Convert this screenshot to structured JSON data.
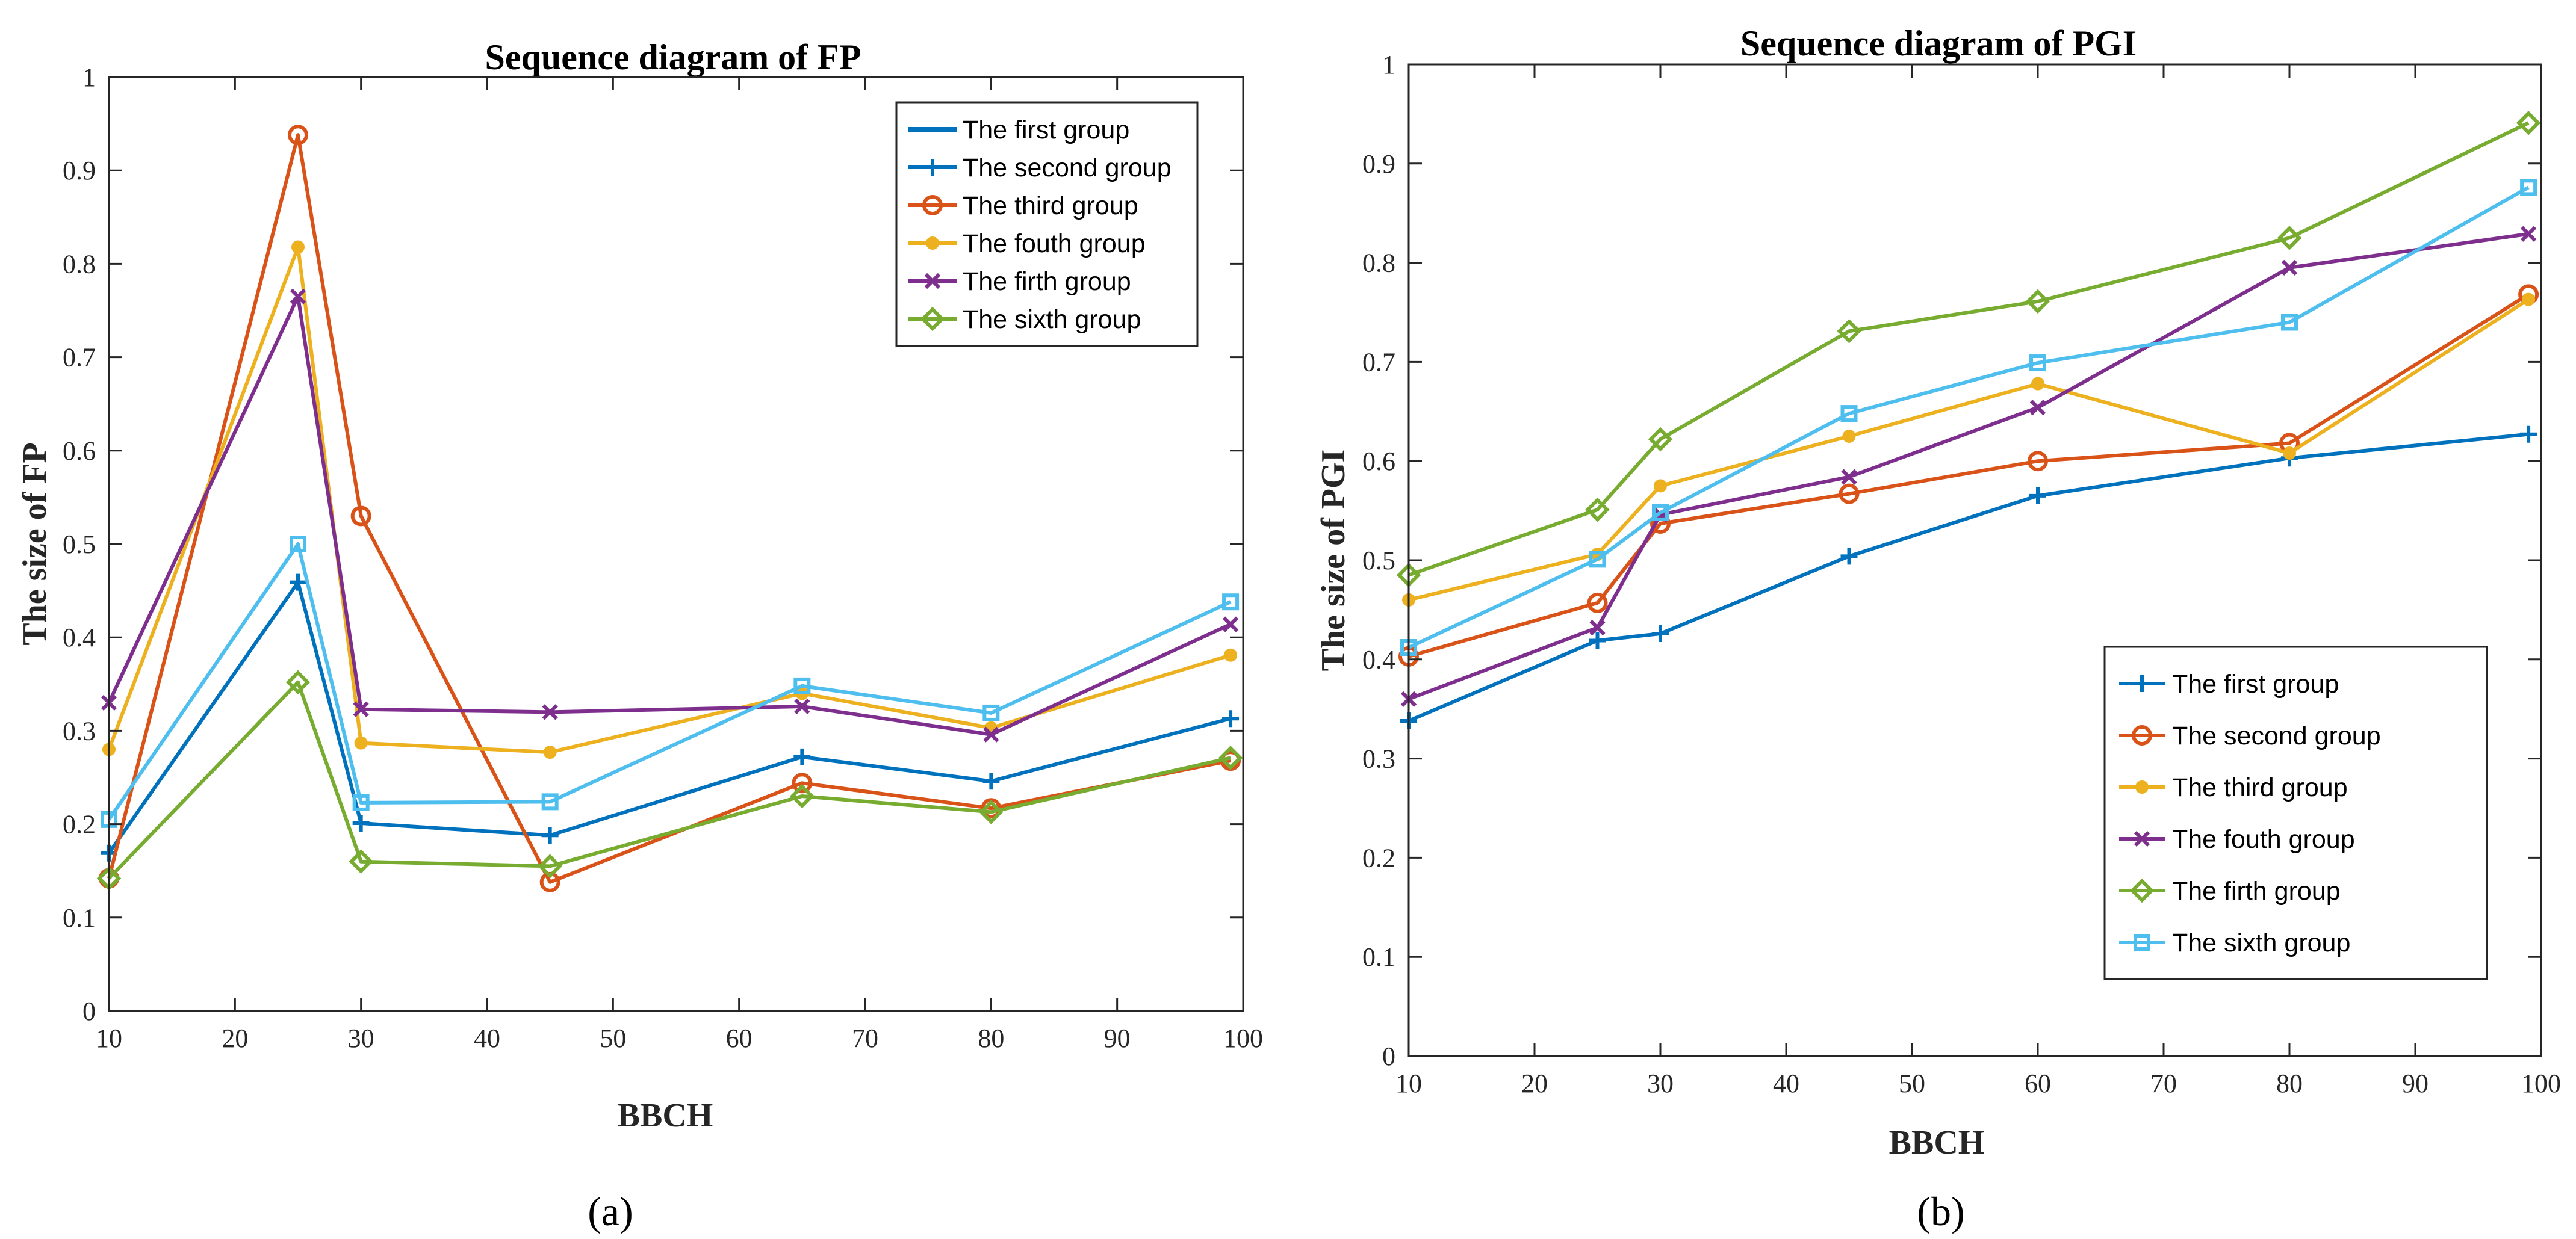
{
  "chart_data": [
    {
      "type": "line",
      "panel_label": "(a)",
      "title": "Sequence diagram of FP",
      "xlabel": "BBCH",
      "ylabel": "The size of FP",
      "xlim": [
        10,
        100
      ],
      "ylim": [
        0,
        1
      ],
      "xticks": [
        10,
        20,
        30,
        40,
        50,
        60,
        70,
        80,
        90,
        100
      ],
      "yticks": [
        0,
        0.1,
        0.2,
        0.3,
        0.4,
        0.5,
        0.6,
        0.7,
        0.8,
        0.9,
        1
      ],
      "xtick_labels": [
        "10",
        "20",
        "30",
        "40",
        "50",
        "60",
        "70",
        "80",
        "90",
        "100"
      ],
      "ytick_labels": [
        "0",
        "0.1",
        "0.2",
        "0.3",
        "0.4",
        "0.5",
        "0.6",
        "0.7",
        "0.8",
        "0.9",
        "1"
      ],
      "grid": false,
      "legend_position": "top-right",
      "x": [
        10,
        25,
        30,
        45,
        65,
        80,
        99
      ],
      "series": [
        {
          "name": "The first group",
          "color": "#0072BD",
          "marker": "none",
          "legend_marker": "none",
          "values": null
        },
        {
          "name": "The second group",
          "color": "#0072BD",
          "marker": "plus",
          "legend_marker": "plus",
          "values": [
            0.169,
            0.459,
            0.201,
            0.188,
            0.272,
            0.246,
            0.313
          ]
        },
        {
          "name": "The third group",
          "color": "#D95319",
          "marker": "circle",
          "legend_marker": "circle",
          "values": [
            0.142,
            0.938,
            0.53,
            0.138,
            0.244,
            0.217,
            0.268
          ]
        },
        {
          "name": "The fouth group",
          "color": "#EDB120",
          "marker": "dot",
          "legend_marker": "dot",
          "values": [
            0.28,
            0.818,
            0.287,
            0.277,
            0.34,
            0.303,
            0.381
          ]
        },
        {
          "name": "The firth group",
          "color": "#7E2F8E",
          "marker": "x",
          "legend_marker": "x",
          "values": [
            0.33,
            0.765,
            0.323,
            0.32,
            0.326,
            0.296,
            0.414
          ]
        },
        {
          "name": "The sixth group",
          "color": "#77AC30",
          "marker": "diamond",
          "legend_marker": "diamond",
          "values": [
            0.142,
            0.352,
            0.16,
            0.155,
            0.23,
            0.213,
            0.271
          ]
        },
        {
          "name": "",
          "color": "#4DBEEE",
          "marker": "square",
          "legend_marker": "none",
          "values": [
            0.205,
            0.5,
            0.223,
            0.224,
            0.348,
            0.319,
            0.438
          ]
        }
      ]
    },
    {
      "type": "line",
      "panel_label": "(b)",
      "title": "Sequence diagram of PGI",
      "xlabel": "BBCH",
      "ylabel": "The size of PGI",
      "xlim": [
        10,
        100
      ],
      "ylim": [
        0,
        1
      ],
      "xticks": [
        10,
        20,
        30,
        40,
        50,
        60,
        70,
        80,
        90,
        100
      ],
      "yticks": [
        0,
        0.1,
        0.2,
        0.3,
        0.4,
        0.5,
        0.6,
        0.7,
        0.8,
        0.9,
        1
      ],
      "xtick_labels": [
        "10",
        "20",
        "30",
        "40",
        "50",
        "60",
        "70",
        "80",
        "90",
        "100"
      ],
      "ytick_labels": [
        "0",
        "0.1",
        "0.2",
        "0.3",
        "0.4",
        "0.5",
        "0.6",
        "0.7",
        "0.8",
        "0.9",
        "1"
      ],
      "grid": false,
      "legend_position": "bottom-right",
      "x": [
        10,
        25,
        30,
        45,
        60,
        80,
        99
      ],
      "series": [
        {
          "name": "The first group",
          "color": "#0072BD",
          "marker": "plus",
          "legend_marker": "plus",
          "values": [
            0.338,
            0.419,
            0.426,
            0.504,
            0.565,
            0.603,
            0.627
          ]
        },
        {
          "name": "The second group",
          "color": "#D95319",
          "marker": "circle",
          "legend_marker": "circle",
          "values": [
            0.403,
            0.457,
            0.537,
            0.567,
            0.6,
            0.618,
            0.768
          ]
        },
        {
          "name": "The third group",
          "color": "#EDB120",
          "marker": "dot",
          "legend_marker": "dot",
          "values": [
            0.46,
            0.506,
            0.575,
            0.625,
            0.678,
            0.608,
            0.763
          ]
        },
        {
          "name": "The fouth group",
          "color": "#7E2F8E",
          "marker": "x",
          "legend_marker": "x",
          "values": [
            0.36,
            0.432,
            0.546,
            0.584,
            0.654,
            0.795,
            0.829
          ]
        },
        {
          "name": "The firth group",
          "color": "#77AC30",
          "marker": "diamond",
          "legend_marker": "diamond",
          "values": [
            0.485,
            0.551,
            0.622,
            0.731,
            0.761,
            0.825,
            0.941
          ]
        },
        {
          "name": "The sixth group",
          "color": "#4DBEEE",
          "marker": "square",
          "legend_marker": "square",
          "values": [
            0.412,
            0.501,
            0.548,
            0.648,
            0.699,
            0.74,
            0.876
          ]
        }
      ]
    }
  ]
}
